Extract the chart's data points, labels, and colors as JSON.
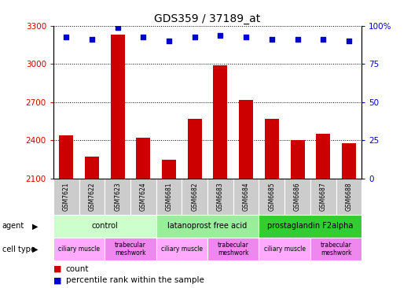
{
  "title": "GDS359 / 37189_at",
  "samples": [
    "GSM7621",
    "GSM7622",
    "GSM7623",
    "GSM7624",
    "GSM6681",
    "GSM6682",
    "GSM6683",
    "GSM6684",
    "GSM6685",
    "GSM6686",
    "GSM6687",
    "GSM6688"
  ],
  "counts": [
    2440,
    2270,
    3230,
    2420,
    2250,
    2570,
    2990,
    2720,
    2570,
    2405,
    2455,
    2380
  ],
  "percentiles": [
    93,
    91,
    99,
    93,
    90,
    93,
    94,
    93,
    91,
    91,
    91,
    90
  ],
  "ylim_left": [
    2100,
    3300
  ],
  "ylim_right": [
    0,
    100
  ],
  "yticks_left": [
    2100,
    2400,
    2700,
    3000,
    3300
  ],
  "yticks_right": [
    0,
    25,
    50,
    75,
    100
  ],
  "bar_color": "#cc0000",
  "dot_color": "#0000cc",
  "agent_groups": [
    {
      "label": "control",
      "start": 0,
      "end": 4,
      "color": "#ccffcc"
    },
    {
      "label": "latanoprost free acid",
      "start": 4,
      "end": 8,
      "color": "#99ee99"
    },
    {
      "label": "prostaglandin F2alpha",
      "start": 8,
      "end": 12,
      "color": "#33cc33"
    }
  ],
  "cell_type_groups": [
    {
      "label": "ciliary muscle",
      "start": 0,
      "end": 2,
      "color": "#ffaaff"
    },
    {
      "label": "trabecular\nmeshwork",
      "start": 2,
      "end": 4,
      "color": "#ee88ee"
    },
    {
      "label": "ciliary muscle",
      "start": 4,
      "end": 6,
      "color": "#ffaaff"
    },
    {
      "label": "trabecular\nmeshwork",
      "start": 6,
      "end": 8,
      "color": "#ee88ee"
    },
    {
      "label": "ciliary muscle",
      "start": 8,
      "end": 10,
      "color": "#ffaaff"
    },
    {
      "label": "trabecular\nmeshwork",
      "start": 10,
      "end": 12,
      "color": "#ee88ee"
    }
  ],
  "left_label_color": "#cc0000",
  "right_label_color": "#0000cc",
  "sample_box_color": "#cccccc",
  "legend_count_color": "#cc0000",
  "legend_pct_color": "#0000cc"
}
